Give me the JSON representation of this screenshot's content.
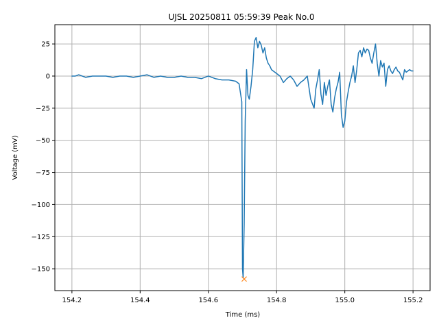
{
  "chart_data": {
    "type": "line",
    "title": "UJSL 20250811 05:59:39 Peak No.0",
    "xlabel": "Time (ms)",
    "ylabel": "Voltage (mV)",
    "xlim": [
      154.15,
      155.25
    ],
    "ylim": [
      -167,
      40
    ],
    "xticks": [
      154.2,
      154.4,
      154.6,
      154.8,
      155.0,
      155.2
    ],
    "xtick_labels": [
      "154.2",
      "154.4",
      "154.6",
      "154.8",
      "155.0",
      "155.2"
    ],
    "yticks": [
      25,
      0,
      -25,
      -50,
      -75,
      -100,
      -125,
      -150
    ],
    "ytick_labels": [
      "25",
      "0",
      "−25",
      "−50",
      "−75",
      "−100",
      "−125",
      "−150"
    ],
    "grid": true,
    "colors": {
      "series": "#1f77b4",
      "marker": "#ff7f0e",
      "grid": "#b0b0b0",
      "axes": "#000000"
    },
    "series": [
      {
        "x": [
          154.2,
          154.21,
          154.22,
          154.23,
          154.24,
          154.26,
          154.28,
          154.3,
          154.32,
          154.34,
          154.36,
          154.38,
          154.4,
          154.42,
          154.44,
          154.46,
          154.48,
          154.5,
          154.52,
          154.54,
          154.56,
          154.58,
          154.6,
          154.62,
          154.64,
          154.66,
          154.68,
          154.69,
          154.698,
          154.7,
          154.702,
          154.705,
          154.708,
          154.712,
          154.716,
          154.72,
          154.725,
          154.73,
          154.735,
          154.74,
          154.745,
          154.75,
          154.755,
          154.76,
          154.765,
          154.77,
          154.775,
          154.78,
          154.785,
          154.79,
          154.8,
          154.81,
          154.82,
          154.83,
          154.84,
          154.85,
          154.86,
          154.87,
          154.88,
          154.89,
          154.9,
          154.91,
          154.915,
          154.92,
          154.925,
          154.93,
          154.935,
          154.94,
          154.945,
          154.95,
          154.955,
          154.96,
          154.965,
          154.97,
          154.975,
          154.98,
          154.985,
          154.99,
          154.995,
          155.0,
          155.005,
          155.01,
          155.015,
          155.02,
          155.025,
          155.03,
          155.035,
          155.04,
          155.045,
          155.05,
          155.055,
          155.06,
          155.065,
          155.07,
          155.075,
          155.08,
          155.085,
          155.09,
          155.095,
          155.1,
          155.105,
          155.11,
          155.115,
          155.12,
          155.125,
          155.13,
          155.135,
          155.14,
          155.145,
          155.15,
          155.155,
          155.16,
          155.165,
          155.17,
          155.175,
          155.18,
          155.185,
          155.19,
          155.195,
          155.2
        ],
        "y": [
          0,
          0,
          1,
          0,
          -1,
          0,
          0,
          0,
          -1,
          0,
          0,
          -1,
          0,
          1,
          -1,
          0,
          -1,
          -1,
          0,
          -1,
          -1,
          -2,
          0,
          -2,
          -3,
          -3,
          -4,
          -6,
          -20,
          -150,
          -157,
          -115,
          -35,
          5,
          -15,
          -18,
          -8,
          5,
          27,
          30,
          22,
          27,
          24,
          18,
          22,
          14,
          10,
          8,
          5,
          4,
          2,
          0,
          -5,
          -2,
          0,
          -3,
          -8,
          -5,
          -3,
          0,
          -18,
          -25,
          -10,
          -3,
          5,
          -14,
          -22,
          -5,
          -15,
          -8,
          -3,
          -22,
          -28,
          -17,
          -10,
          -5,
          3,
          -30,
          -40,
          -35,
          -20,
          -12,
          -5,
          0,
          8,
          -5,
          5,
          18,
          20,
          15,
          22,
          18,
          21,
          20,
          14,
          10,
          18,
          25,
          10,
          0,
          12,
          7,
          10,
          -8,
          5,
          8,
          4,
          2,
          5,
          7,
          4,
          3,
          0,
          -3,
          5,
          3,
          4,
          5,
          4,
          4
        ]
      }
    ],
    "peak_marker": {
      "x": 154.705,
      "y": -158
    }
  }
}
